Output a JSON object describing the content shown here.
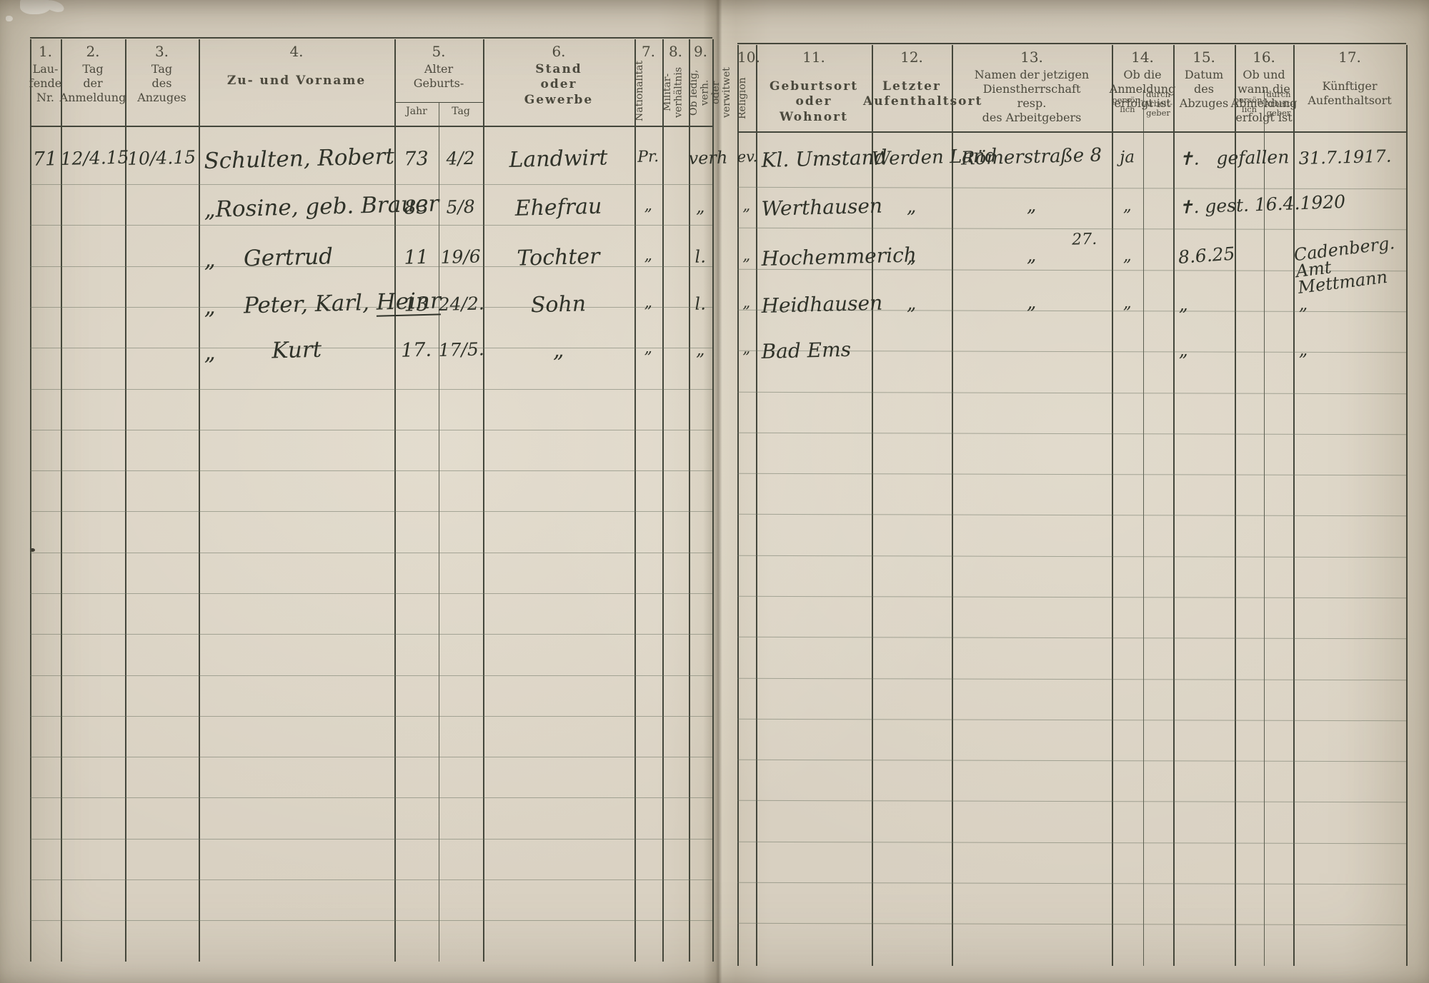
{
  "table": {
    "columns": [
      {
        "id": "c1",
        "number": "1.",
        "label": "Lau-\nfende\nNr."
      },
      {
        "id": "c2",
        "number": "2.",
        "label": "Tag\nder\nAnmeldung"
      },
      {
        "id": "c3",
        "number": "3.",
        "label": "Tag\ndes\nAnzuges"
      },
      {
        "id": "c4",
        "number": "4.",
        "label": "Zu- und Vorname",
        "bold": true
      },
      {
        "id": "c5",
        "number": "5.",
        "label": "Alter\nGeburts-",
        "sub": [
          "Jahr",
          "Tag"
        ]
      },
      {
        "id": "c6",
        "number": "6.",
        "label": "Stand\noder\nGewerbe",
        "bold": true
      },
      {
        "id": "c7",
        "number": "7.",
        "label": "Nationalität",
        "vertical": true
      },
      {
        "id": "c8",
        "number": "8.",
        "label": "Militär-\nverhältnis",
        "vertical": true
      },
      {
        "id": "c9",
        "number": "9.",
        "label": "Ob ledig, verh.\noder verwitwet",
        "vertical": true
      },
      {
        "id": "c10",
        "number": "10.",
        "label": "Religion",
        "vertical": true
      },
      {
        "id": "c11",
        "number": "11.",
        "label": "Geburtsort\noder\nWohnort",
        "bold": true
      },
      {
        "id": "c12",
        "number": "12.",
        "label": "Letzter\nAufenthaltsort",
        "bold": true
      },
      {
        "id": "c13",
        "number": "13.",
        "label": "Namen der jetzigen\nDienstherrschaft\nresp.\ndes Arbeitgebers"
      },
      {
        "id": "c14",
        "number": "14.",
        "label": "Ob die\nAnmeldung\nerfolgt ist",
        "sub": [
          "persön-\nlich",
          "durch\nArbeit-\ngeber"
        ]
      },
      {
        "id": "c15",
        "number": "15.",
        "label": "Datum\ndes\nAbzuges"
      },
      {
        "id": "c16",
        "number": "16.",
        "label": "Ob und\nwann die\nAbmeldung\nerfolgt ist",
        "sub": [
          "persön-\nlich",
          "durch\nArbeit-\ngeber"
        ]
      },
      {
        "id": "c17",
        "number": "17.",
        "label": "Künftiger\nAufenthaltsort"
      }
    ],
    "rows": [
      {
        "c1": "71",
        "c2": "12/4.15",
        "c3": "10/4.15",
        "c4": "Schulten, Robert",
        "c5a": "73",
        "c5b": "4/2",
        "c6": "Landwirt",
        "c7": "Pr.",
        "c9": "verh",
        "c10": "ev.",
        "c11": "Kl. Umstand",
        "c12": "Werden Land",
        "c13": "Römerstraße 8",
        "c14a": "ja",
        "c15": "✝.   gefallen",
        "c17": "31.7.1917."
      },
      {
        "c4": "„Rosine, geb. Brauer",
        "c5a": "83",
        "c5b": "5/8",
        "c6": "Ehefrau",
        "c7": "„",
        "c9": "„",
        "c10": "„",
        "c11": "Werthausen",
        "c12": "„",
        "c13": "„",
        "c14a": "„",
        "c15": "✝. gest. 16.4.1920"
      },
      {
        "c4": "„    Gertrud",
        "c5a": "11",
        "c5b": "19/6",
        "c6": "Tochter",
        "c7": "„",
        "c9": "l.",
        "c10": "„",
        "c11": "Hochemmerich",
        "c12": "„",
        "c13": "„",
        "c13n": "27.",
        "c14a": "„",
        "c15": "8.6.25",
        "c17": "Cadenberg. Amt\n      Mettmann"
      },
      {
        "c4": "„    Peter, Karl, ",
        "c4u": "Heinr",
        "c5a": "13",
        "c5b": "24/2.",
        "c6": "Sohn",
        "c7": "„",
        "c9": "l.",
        "c10": "„",
        "c11": "Heidhausen",
        "c12": "„",
        "c13": "„",
        "c14a": "„",
        "c15": "„",
        "c17": "„"
      },
      {
        "c4": "„        Kurt",
        "c5a": "17.",
        "c5b": "17/5.",
        "c6": "„",
        "c7": "„",
        "c9": "„",
        "c10": "„",
        "c11": "Bad Ems",
        "c15": "„",
        "c17": "„"
      }
    ]
  }
}
